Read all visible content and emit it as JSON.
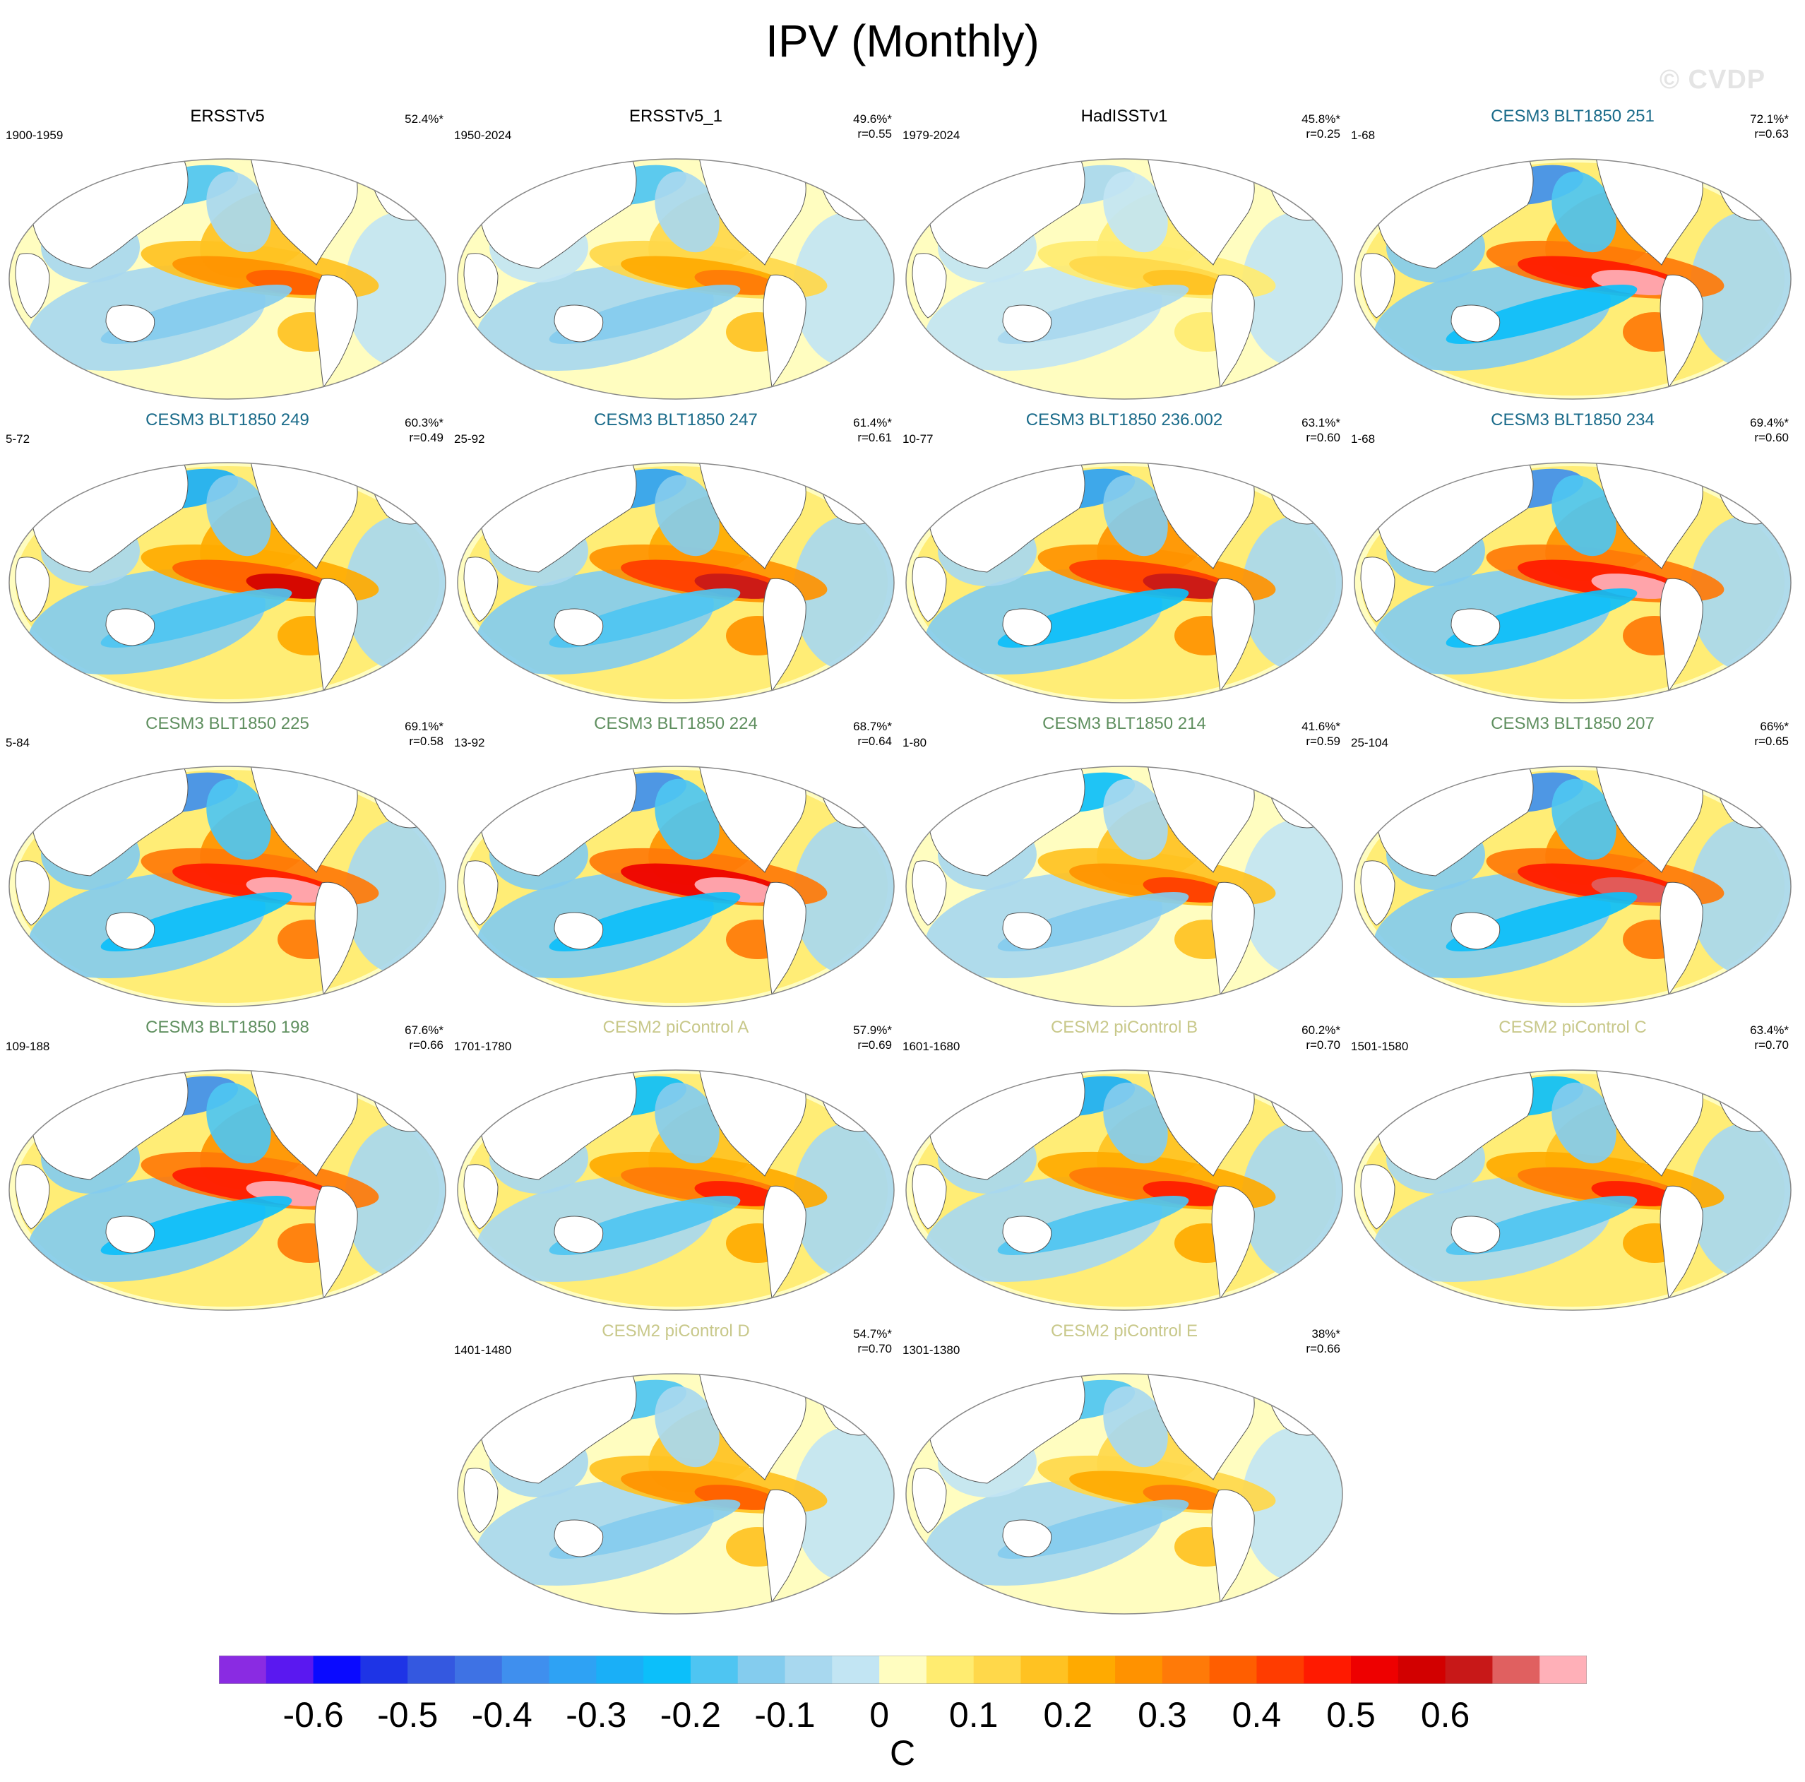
{
  "title": "IPV (Monthly)",
  "watermark": "© CVDP",
  "colors": {
    "obs_title": "#000000",
    "cesm3_blt_teal": "#1a6b8a",
    "cesm3_blt_green": "#5f8f5f",
    "cesm2_picontrol": "#c8c88a"
  },
  "panels": [
    {
      "title": "ERSSTv5",
      "period": "1900-1959",
      "pct": "52.4%*",
      "r": "",
      "title_color": "obs_title",
      "amp": 0.7
    },
    {
      "title": "ERSSTv5_1",
      "period": "1950-2024",
      "pct": "49.6%*",
      "r": "r=0.55",
      "title_color": "obs_title",
      "amp": 0.6
    },
    {
      "title": "HadISSTv1",
      "period": "1979-2024",
      "pct": "45.8%*",
      "r": "r=0.25",
      "title_color": "obs_title",
      "amp": 0.35
    },
    {
      "title": "CESM3 BLT1850 251",
      "period": "1-68",
      "pct": "72.1%*",
      "r": "r=0.63",
      "title_color": "cesm3_blt_teal",
      "amp": 1.3
    },
    {
      "title": "CESM3 BLT1850 249",
      "period": "5-72",
      "pct": "60.3%*",
      "r": "r=0.49",
      "title_color": "cesm3_blt_teal",
      "amp": 1.0
    },
    {
      "title": "CESM3 BLT1850 247",
      "period": "25-92",
      "pct": "61.4%*",
      "r": "r=0.61",
      "title_color": "cesm3_blt_teal",
      "amp": 1.1
    },
    {
      "title": "CESM3 BLT1850 236.002",
      "period": "10-77",
      "pct": "63.1%*",
      "r": "r=0.60",
      "title_color": "cesm3_blt_teal",
      "amp": 1.15
    },
    {
      "title": "CESM3 BLT1850 234",
      "period": "1-68",
      "pct": "69.4%*",
      "r": "r=0.60",
      "title_color": "cesm3_blt_teal",
      "amp": 1.3
    },
    {
      "title": "CESM3 BLT1850 225",
      "period": "5-84",
      "pct": "69.1%*",
      "r": "r=0.58",
      "title_color": "cesm3_blt_green",
      "amp": 1.3
    },
    {
      "title": "CESM3 BLT1850 224",
      "period": "13-92",
      "pct": "68.7%*",
      "r": "r=0.64",
      "title_color": "cesm3_blt_green",
      "amp": 1.35
    },
    {
      "title": "CESM3 BLT1850 214",
      "period": "1-80",
      "pct": "41.6%*",
      "r": "r=0.59",
      "title_color": "cesm3_blt_green",
      "amp": 0.75
    },
    {
      "title": "CESM3 BLT1850 207",
      "period": "25-104",
      "pct": "66%*",
      "r": "r=0.65",
      "title_color": "cesm3_blt_green",
      "amp": 1.25
    },
    {
      "title": "CESM3 BLT1850 198",
      "period": "109-188",
      "pct": "67.6%*",
      "r": "r=0.66",
      "title_color": "cesm3_blt_green",
      "amp": 1.3
    },
    {
      "title": "CESM2 piControl A",
      "period": "1701-1780",
      "pct": "57.9%*",
      "r": "r=0.69",
      "title_color": "cesm2_picontrol",
      "amp": 0.85
    },
    {
      "title": "CESM2 piControl B",
      "period": "1601-1680",
      "pct": "60.2%*",
      "r": "r=0.70",
      "title_color": "cesm2_picontrol",
      "amp": 0.9
    },
    {
      "title": "CESM2 piControl C",
      "period": "1501-1580",
      "pct": "63.4%*",
      "r": "r=0.70",
      "title_color": "cesm2_picontrol",
      "amp": 0.85
    },
    {
      "title": "CESM2 piControl D",
      "period": "1401-1480",
      "pct": "54.7%*",
      "r": "r=0.70",
      "title_color": "cesm2_picontrol",
      "amp": 0.7
    },
    {
      "title": "CESM2 piControl E",
      "period": "1301-1380",
      "pct": "38%*",
      "r": "r=0.66",
      "title_color": "cesm2_picontrol",
      "amp": 0.6
    }
  ],
  "colorbar": {
    "colors": [
      "#8a2be2",
      "#5a18f0",
      "#0a0aff",
      "#1e34e6",
      "#3458e0",
      "#3e72e4",
      "#3f8fee",
      "#2ea2f4",
      "#1aaff7",
      "#0cbffa",
      "#4ec5f2",
      "#84ccee",
      "#a8d8ef",
      "#c2e5f3",
      "#fffdc0",
      "#ffec70",
      "#ffd84a",
      "#ffc222",
      "#ffaa00",
      "#ff9200",
      "#ff7a08",
      "#ff5e00",
      "#ff3c00",
      "#ff1a00",
      "#ee0000",
      "#d20000",
      "#c81818",
      "#e06060",
      "#ffb0b8"
    ],
    "labels": [
      "-0.6",
      "-0.5",
      "-0.4",
      "-0.3",
      "-0.2",
      "-0.1",
      "0",
      "0.1",
      "0.2",
      "0.3",
      "0.4",
      "0.5",
      "0.6"
    ],
    "label_values": [
      -0.6,
      -0.5,
      -0.4,
      -0.3,
      -0.2,
      -0.1,
      0,
      0.1,
      0.2,
      0.3,
      0.4,
      0.5,
      0.6
    ],
    "units": "C"
  }
}
